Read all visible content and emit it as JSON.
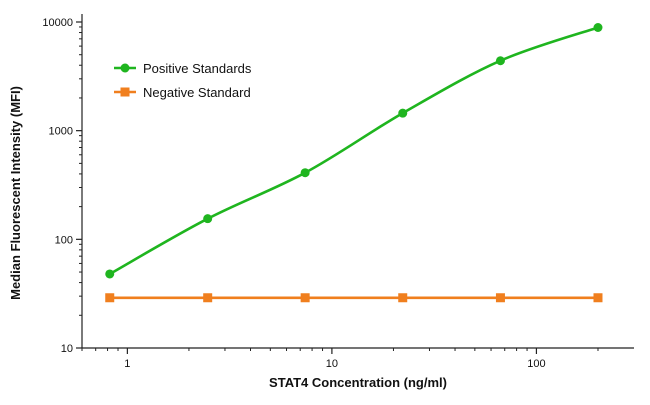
{
  "chart_data": {
    "type": "line",
    "title": "",
    "xlabel": "STAT4 Concentration (ng/ml)",
    "ylabel": "Median Fluorescent Intensity (MFI)",
    "x_scale": "log",
    "y_scale": "log",
    "xlim": [
      0.6,
      300
    ],
    "ylim": [
      10,
      10000
    ],
    "x_ticks": [
      1,
      10,
      100
    ],
    "y_ticks": [
      10,
      100,
      1000,
      10000
    ],
    "grid": false,
    "legend_position": "top-left",
    "series": [
      {
        "name": "Positive Standards",
        "color": "#1fb51f",
        "marker": "circle",
        "x": [
          0.82,
          2.47,
          7.4,
          22.2,
          66.7,
          200
        ],
        "y": [
          48,
          155,
          410,
          1450,
          4400,
          8900
        ]
      },
      {
        "name": "Negative Standard",
        "color": "#f07f1e",
        "marker": "square",
        "x": [
          0.82,
          2.47,
          7.4,
          22.2,
          66.7,
          200
        ],
        "y": [
          29,
          29,
          29,
          29,
          29,
          29
        ]
      }
    ]
  }
}
